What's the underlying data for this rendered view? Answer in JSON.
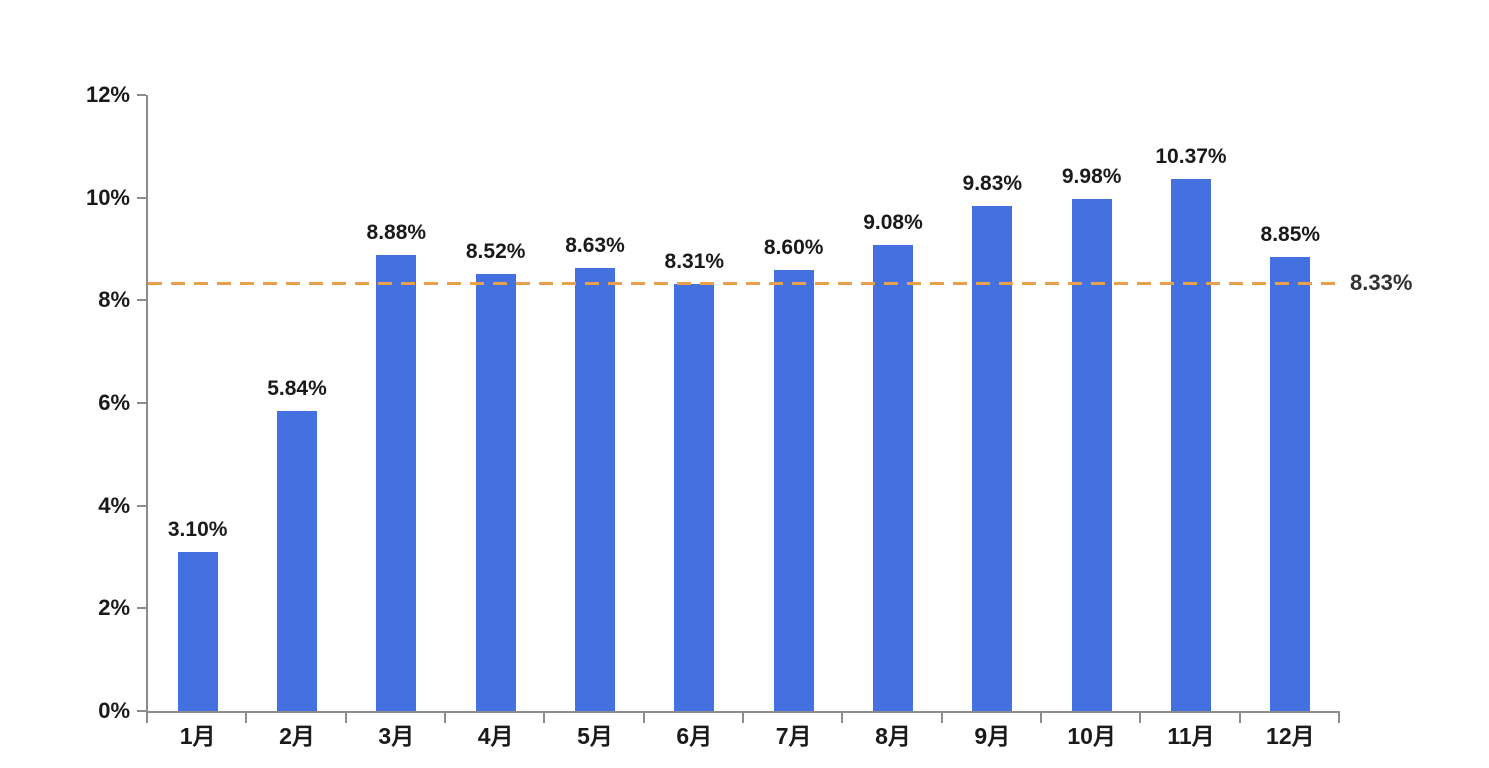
{
  "chart_data": {
    "type": "bar",
    "title": "",
    "xlabel": "",
    "ylabel": "",
    "categories": [
      "1月",
      "2月",
      "3月",
      "4月",
      "5月",
      "6月",
      "7月",
      "8月",
      "9月",
      "10月",
      "11月",
      "12月"
    ],
    "values": [
      3.1,
      5.84,
      8.88,
      8.52,
      8.63,
      8.31,
      8.6,
      9.08,
      9.83,
      9.98,
      10.37,
      8.85
    ],
    "data_labels": [
      "3.10%",
      "5.84%",
      "8.88%",
      "8.52%",
      "8.63%",
      "8.31%",
      "8.60%",
      "9.08%",
      "9.83%",
      "9.98%",
      "10.37%",
      "8.85%"
    ],
    "ylim": [
      0,
      12
    ],
    "y_tick_values": [
      0,
      2,
      4,
      6,
      8,
      10,
      12
    ],
    "y_tick_labels": [
      "0%",
      "2%",
      "4%",
      "6%",
      "8%",
      "10%",
      "12%"
    ],
    "reference_line": {
      "value": 8.33,
      "label": "8.33%",
      "style": "dashed"
    },
    "grid": false,
    "legend_position": "none",
    "colors": {
      "bar": "#4471DF",
      "reference_line": "#E8A04C",
      "axis": "#8C8C8C",
      "label_text": "#1A1A1A"
    }
  }
}
